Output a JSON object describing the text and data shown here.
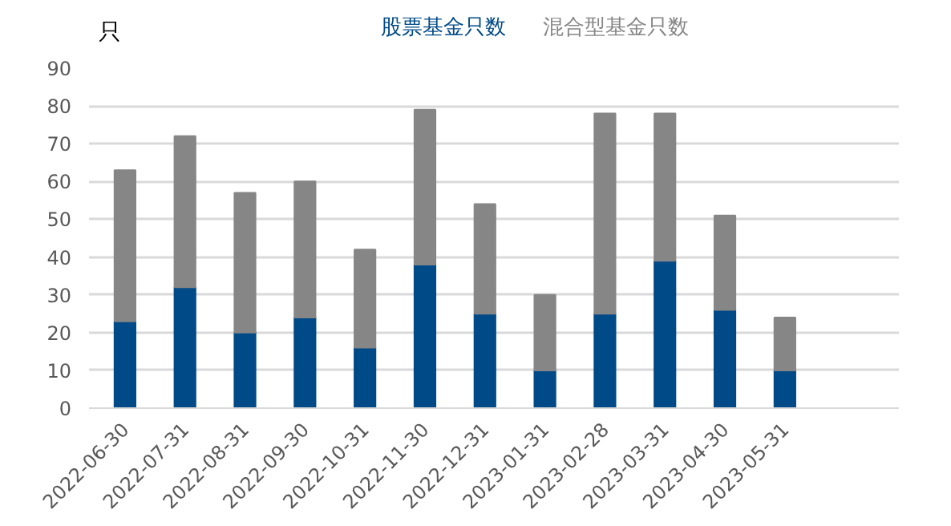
{
  "chart_data": {
    "type": "bar",
    "stacked": true,
    "ylabel": "只",
    "categories": [
      "2022-06-30",
      "2022-07-31",
      "2022-08-31",
      "2022-09-30",
      "2022-10-31",
      "2022-11-30",
      "2022-12-31",
      "2023-01-31",
      "2023-02-28",
      "2023-03-31",
      "2023-04-30",
      "2023-05-31"
    ],
    "series": [
      {
        "name": "股票基金只数",
        "color": "#004a87",
        "values": [
          23,
          32,
          20,
          24,
          16,
          38,
          25,
          10,
          25,
          39,
          26,
          10
        ]
      },
      {
        "name": "混合型基金只数",
        "color": "#868686",
        "values": [
          40,
          40,
          37,
          36,
          26,
          41,
          29,
          20,
          53,
          39,
          25,
          14
        ]
      }
    ],
    "ylim": [
      0,
      90
    ],
    "yticks": [
      0,
      10,
      20,
      30,
      40,
      50,
      60,
      70,
      80,
      90
    ],
    "grid": "y",
    "legend": "top"
  }
}
